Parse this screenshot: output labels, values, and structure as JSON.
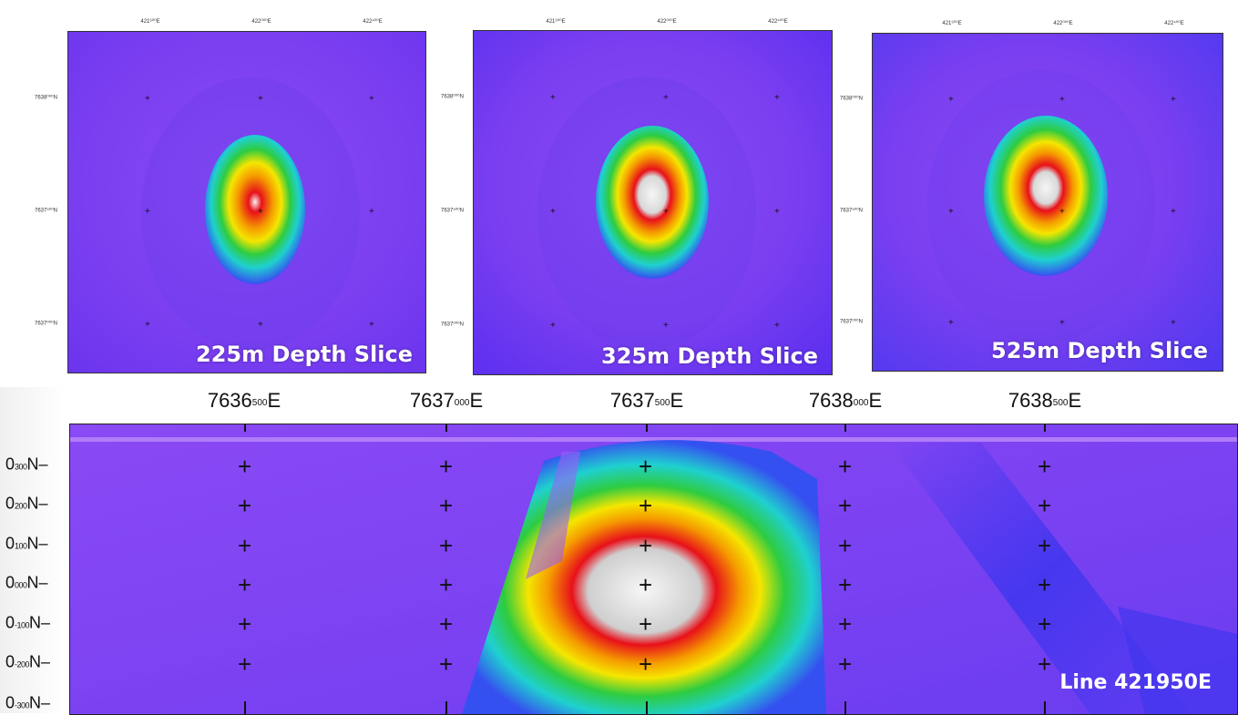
{
  "slices": [
    {
      "title": "225m Depth Slice",
      "top_ticks": [
        "421⁶⁰⁰E",
        "422⁰⁰⁰E",
        "422⁴⁰⁰E"
      ],
      "left_ticks": [
        "7638⁰⁰⁰N",
        "7637⁵⁰⁰N",
        "7637⁰⁰⁰N"
      ]
    },
    {
      "title": "325m Depth Slice",
      "top_ticks": [
        "421⁶⁰⁰E",
        "422⁰⁰⁰E",
        "422⁴⁰⁰E"
      ],
      "left_ticks": [
        "7638⁰⁰⁰N",
        "7637⁵⁰⁰N",
        "7637⁰⁰⁰N"
      ]
    },
    {
      "title": "525m Depth Slice",
      "top_ticks": [
        "421⁶⁰⁰E",
        "422⁰⁰⁰E",
        "422⁴⁰⁰E"
      ],
      "left_ticks": [
        "7638⁰⁰⁰N",
        "7637⁵⁰⁰N",
        "7637⁰⁰⁰N"
      ]
    }
  ],
  "section": {
    "label": "Line 421950E",
    "top_ticks": [
      {
        "main": "7636",
        "sup": "500",
        "end": "E"
      },
      {
        "main": "7637",
        "sup": "000",
        "end": "E"
      },
      {
        "main": "7637",
        "sup": "500",
        "end": "E"
      },
      {
        "main": "7638",
        "sup": "000",
        "end": "E"
      },
      {
        "main": "7638",
        "sup": "500",
        "end": "E"
      }
    ],
    "left_ticks": [
      {
        "big": "0",
        "small": "300",
        "end": "N"
      },
      {
        "big": "0",
        "small": "200",
        "end": "N"
      },
      {
        "big": "0",
        "small": "100",
        "end": "N"
      },
      {
        "big": "0",
        "small": "000",
        "end": "N"
      },
      {
        "big": "0",
        "small": "-100",
        "end": "N"
      },
      {
        "big": "0",
        "small": "-200",
        "end": "N"
      },
      {
        "big": "0",
        "small": "-300",
        "end": "N"
      }
    ]
  },
  "colors": {
    "background": "#7a3ff0",
    "low": "#5a2ef0",
    "green": "#2ecc40",
    "yellow": "#f5e600",
    "red": "#e8101a",
    "high": "#f2f2f2"
  }
}
